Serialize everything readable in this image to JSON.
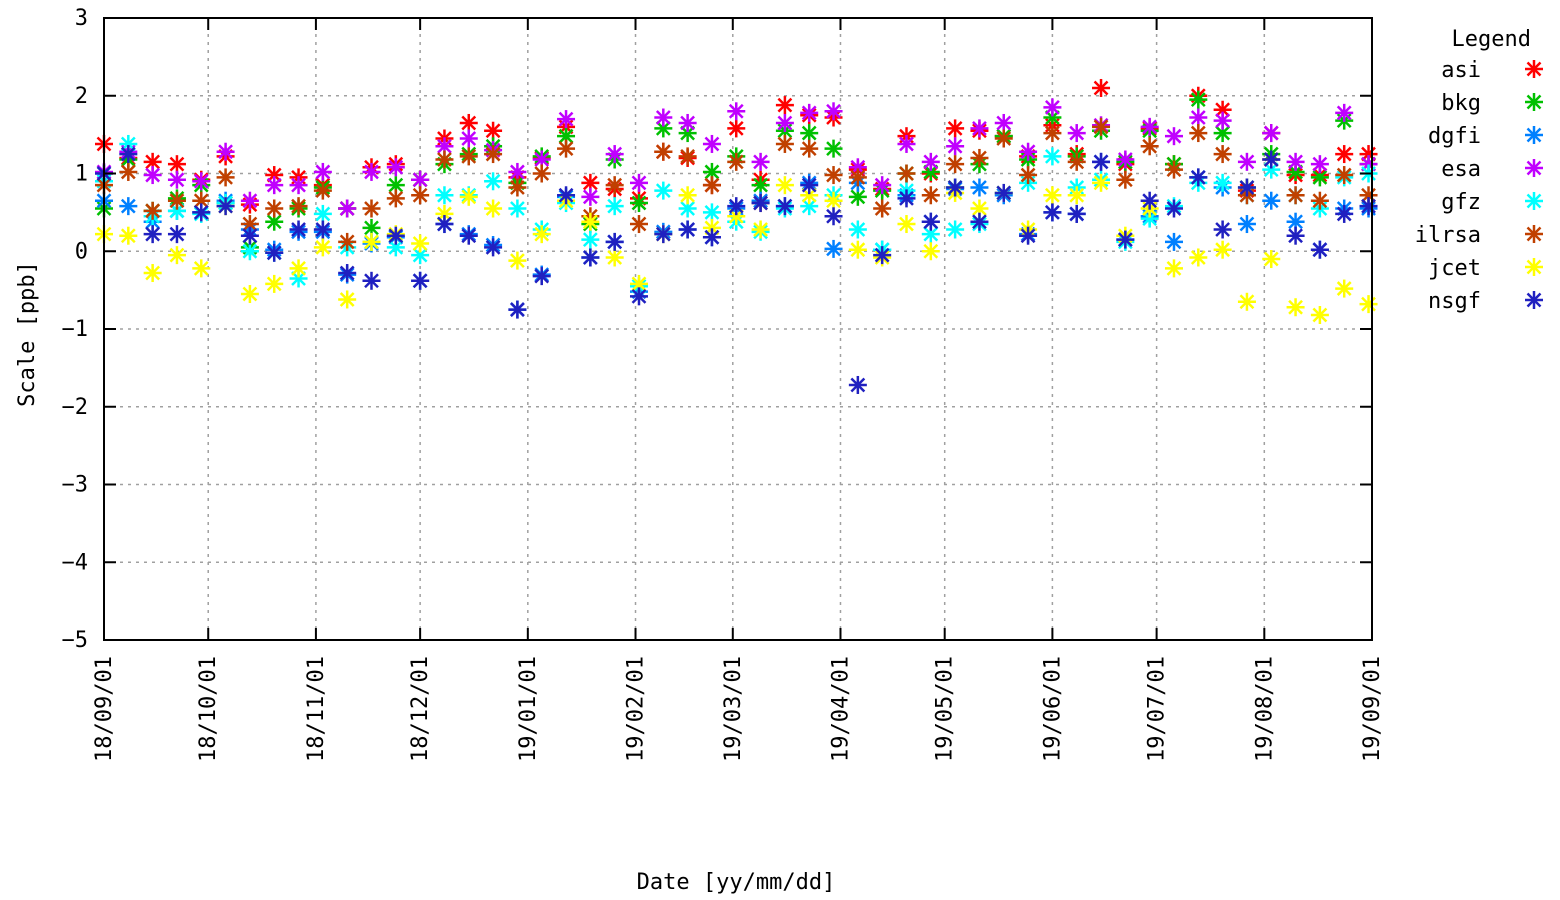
{
  "chart_data": {
    "type": "scatter",
    "title": "",
    "xlabel": "Date [yy/mm/dd]",
    "ylabel": "Scale [ppb]",
    "ylim": [
      -5,
      3
    ],
    "yticks": [
      "3",
      "2",
      "1",
      "0",
      "−1",
      "−2",
      "−3",
      "−4",
      "−5"
    ],
    "xlim": [
      "2018-09-01",
      "2019-09-01"
    ],
    "xtick_labels": [
      "18/09/01",
      "18/10/01",
      "18/11/01",
      "18/12/01",
      "19/01/01",
      "19/02/01",
      "19/03/01",
      "19/04/01",
      "19/05/01",
      "19/06/01",
      "19/07/01",
      "19/08/01",
      "19/09/01"
    ],
    "xticks": [
      "2018-09-01",
      "2018-10-01",
      "2018-11-01",
      "2018-12-01",
      "2019-01-01",
      "2019-02-01",
      "2019-03-01",
      "2019-04-01",
      "2019-05-01",
      "2019-06-01",
      "2019-07-01",
      "2019-08-01",
      "2019-09-01"
    ],
    "grid": true,
    "marker": "asterisk",
    "legend": {
      "title": "Legend",
      "position": "right-outside"
    },
    "x": [
      "2018-09-01",
      "2018-09-08",
      "2018-09-15",
      "2018-09-22",
      "2018-09-29",
      "2018-10-06",
      "2018-10-13",
      "2018-10-20",
      "2018-10-27",
      "2018-11-03",
      "2018-11-10",
      "2018-11-17",
      "2018-11-24",
      "2018-12-01",
      "2018-12-08",
      "2018-12-15",
      "2018-12-22",
      "2018-12-29",
      "2019-01-05",
      "2019-01-12",
      "2019-01-19",
      "2019-01-26",
      "2019-02-02",
      "2019-02-09",
      "2019-02-16",
      "2019-02-23",
      "2019-03-02",
      "2019-03-09",
      "2019-03-16",
      "2019-03-23",
      "2019-03-30",
      "2019-04-06",
      "2019-04-13",
      "2019-04-20",
      "2019-04-27",
      "2019-05-04",
      "2019-05-11",
      "2019-05-18",
      "2019-05-25",
      "2019-06-01",
      "2019-06-08",
      "2019-06-15",
      "2019-06-22",
      "2019-06-29",
      "2019-07-06",
      "2019-07-13",
      "2019-07-20",
      "2019-07-27",
      "2019-08-03",
      "2019-08-10",
      "2019-08-17",
      "2019-08-24",
      "2019-08-31"
    ],
    "series": [
      {
        "name": "asi",
        "color": "#ff0000",
        "values": [
          1.38,
          1.2,
          1.15,
          1.12,
          0.92,
          1.22,
          0.6,
          0.98,
          0.95,
          0.85,
          0.55,
          1.08,
          1.12,
          0.92,
          1.45,
          1.65,
          1.55,
          0.95,
          1.2,
          1.6,
          0.88,
          0.8,
          0.68,
          1.28,
          1.2,
          0.85,
          1.58,
          0.92,
          1.88,
          1.75,
          1.72,
          1.05,
          0.8,
          1.48,
          1.0,
          1.58,
          1.55,
          1.48,
          1.22,
          1.62,
          1.25,
          2.1,
          1.12,
          1.58,
          1.12,
          2.0,
          1.82,
          0.78,
          1.52,
          0.98,
          0.98,
          1.25,
          1.25
        ]
      },
      {
        "name": "bkg",
        "color": "#00c000",
        "values": [
          0.55,
          1.18,
          0.52,
          0.68,
          0.85,
          0.62,
          0.05,
          0.38,
          0.55,
          0.82,
          0.55,
          0.3,
          0.85,
          0.92,
          1.12,
          1.25,
          1.35,
          0.88,
          1.22,
          1.48,
          0.35,
          1.18,
          0.62,
          1.58,
          1.52,
          1.02,
          1.22,
          0.85,
          1.55,
          1.52,
          1.32,
          0.7,
          0.78,
          1.0,
          1.02,
          0.82,
          1.12,
          1.48,
          1.18,
          1.72,
          1.22,
          1.55,
          1.15,
          1.55,
          1.12,
          1.95,
          1.52,
          0.82,
          1.25,
          1.02,
          0.95,
          1.68,
          1.12
        ]
      },
      {
        "name": "dgfi",
        "color": "#0080ff",
        "values": [
          0.65,
          0.58,
          0.38,
          0.52,
          0.5,
          0.65,
          0.28,
          0.02,
          0.25,
          0.25,
          -0.3,
          0.1,
          0.18,
          -0.38,
          0.35,
          0.22,
          0.08,
          -0.75,
          -0.3,
          0.7,
          -0.08,
          0.12,
          -0.52,
          0.25,
          0.28,
          0.18,
          0.55,
          0.65,
          0.58,
          0.88,
          0.03,
          0.88,
          0.02,
          0.72,
          0.38,
          0.8,
          0.82,
          0.72,
          0.22,
          0.5,
          0.48,
          1.15,
          0.15,
          0.45,
          0.12,
          0.95,
          0.82,
          0.35,
          0.65,
          0.38,
          0.02,
          0.55,
          0.55
        ]
      },
      {
        "name": "esa",
        "color": "#c000ff",
        "values": [
          1.02,
          1.28,
          0.98,
          0.92,
          0.9,
          1.28,
          0.65,
          0.85,
          0.85,
          1.02,
          0.55,
          1.02,
          1.08,
          0.92,
          1.35,
          1.45,
          1.3,
          1.02,
          1.18,
          1.7,
          0.7,
          1.25,
          0.88,
          1.72,
          1.65,
          1.38,
          1.8,
          1.15,
          1.65,
          1.78,
          1.8,
          1.08,
          0.85,
          1.38,
          1.15,
          1.35,
          1.58,
          1.65,
          1.28,
          1.85,
          1.52,
          1.62,
          1.18,
          1.6,
          1.48,
          1.72,
          1.68,
          1.15,
          1.52,
          1.15,
          1.12,
          1.78,
          1.12
        ]
      },
      {
        "name": "gfz",
        "color": "#00ffff",
        "values": [
          0.9,
          1.38,
          0.45,
          0.52,
          0.48,
          0.62,
          0.0,
          -0.02,
          -0.35,
          0.48,
          0.05,
          0.12,
          0.05,
          -0.05,
          0.72,
          0.72,
          0.9,
          0.55,
          0.28,
          0.62,
          0.15,
          0.58,
          -0.45,
          0.78,
          0.55,
          0.5,
          0.38,
          0.25,
          0.55,
          0.58,
          0.72,
          0.28,
          0.02,
          0.78,
          0.22,
          0.28,
          0.35,
          0.75,
          0.88,
          1.22,
          0.82,
          0.92,
          0.12,
          0.42,
          0.58,
          0.88,
          0.88,
          0.72,
          1.05,
          0.72,
          0.55,
          0.95,
          1.0
        ]
      },
      {
        "name": "ilrsa",
        "color": "#c04000",
        "values": [
          0.85,
          1.02,
          0.52,
          0.65,
          0.65,
          0.95,
          0.35,
          0.55,
          0.58,
          0.78,
          0.12,
          0.55,
          0.68,
          0.72,
          1.18,
          1.22,
          1.25,
          0.82,
          1.0,
          1.32,
          0.45,
          0.85,
          0.35,
          1.28,
          1.22,
          0.85,
          1.15,
          0.62,
          1.38,
          1.32,
          0.98,
          0.95,
          0.55,
          1.0,
          0.72,
          1.12,
          1.2,
          1.45,
          0.98,
          1.52,
          1.15,
          1.6,
          0.92,
          1.35,
          1.05,
          1.52,
          1.25,
          0.72,
          1.18,
          0.72,
          0.65,
          0.98,
          0.72
        ]
      },
      {
        "name": "jcet",
        "color": "#ffff00",
        "values": [
          0.22,
          0.2,
          -0.28,
          -0.05,
          -0.22,
          0.58,
          -0.55,
          -0.42,
          -0.22,
          0.05,
          -0.62,
          0.12,
          0.22,
          0.1,
          0.48,
          0.7,
          0.55,
          -0.12,
          0.22,
          0.65,
          0.38,
          -0.08,
          -0.42,
          0.22,
          0.72,
          0.3,
          0.45,
          0.28,
          0.85,
          0.72,
          0.65,
          0.02,
          -0.08,
          0.35,
          0.0,
          0.75,
          0.55,
          0.75,
          0.28,
          0.72,
          0.72,
          0.88,
          0.2,
          0.55,
          -0.22,
          -0.08,
          0.02,
          -0.65,
          -0.1,
          -0.72,
          -0.82,
          -0.48,
          -0.68
        ]
      },
      {
        "name": "nsgf",
        "color": "#2020c0",
        "values": [
          1.0,
          1.25,
          0.22,
          0.22,
          0.5,
          0.58,
          0.2,
          -0.02,
          0.28,
          0.28,
          -0.28,
          -0.38,
          0.2,
          -0.38,
          0.35,
          0.2,
          0.05,
          -0.75,
          -0.32,
          0.72,
          -0.08,
          0.12,
          -0.58,
          0.22,
          0.28,
          0.18,
          0.58,
          0.62,
          0.58,
          0.85,
          0.45,
          -1.72,
          -0.05,
          0.68,
          0.38,
          0.82,
          0.38,
          0.75,
          0.2,
          0.5,
          0.48,
          1.15,
          0.15,
          0.65,
          0.55,
          0.95,
          0.28,
          0.82,
          1.18,
          0.2,
          0.02,
          0.48,
          0.58
        ]
      }
    ]
  }
}
